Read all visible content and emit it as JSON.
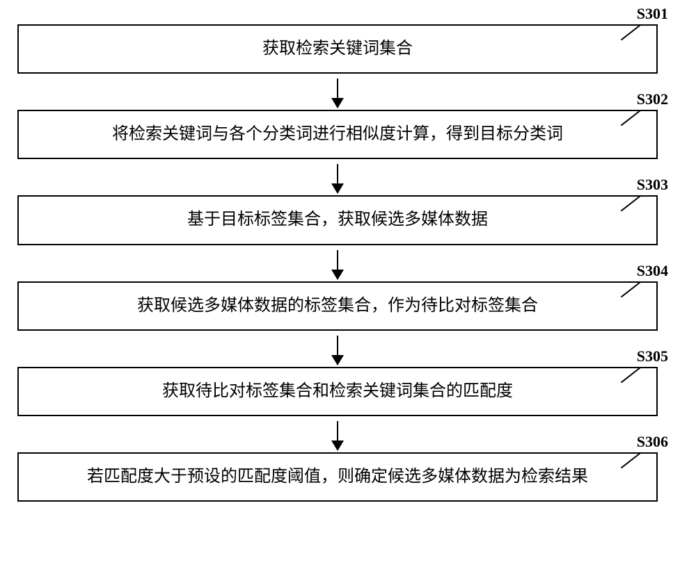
{
  "flowchart": {
    "type": "flowchart",
    "background_color": "#ffffff",
    "box_border_color": "#000000",
    "box_border_width": 2.5,
    "text_color": "#000000",
    "font_size": 24,
    "label_font_size": 22,
    "label_font_weight": "bold",
    "arrow_color": "#000000",
    "steps": [
      {
        "id": "S301",
        "text": "获取检索关键词集合"
      },
      {
        "id": "S302",
        "text": "将检索关键词与各个分类词进行相似度计算，得到目标分类词"
      },
      {
        "id": "S303",
        "text": "基于目标标签集合，获取候选多媒体数据"
      },
      {
        "id": "S304",
        "text": "获取候选多媒体数据的标签集合，作为待比对标签集合"
      },
      {
        "id": "S305",
        "text": "获取待比对标签集合和检索关键词集合的匹配度"
      },
      {
        "id": "S306",
        "text": "若匹配度大于预设的匹配度阈值，则确定候选多媒体数据为检索结果"
      }
    ]
  }
}
